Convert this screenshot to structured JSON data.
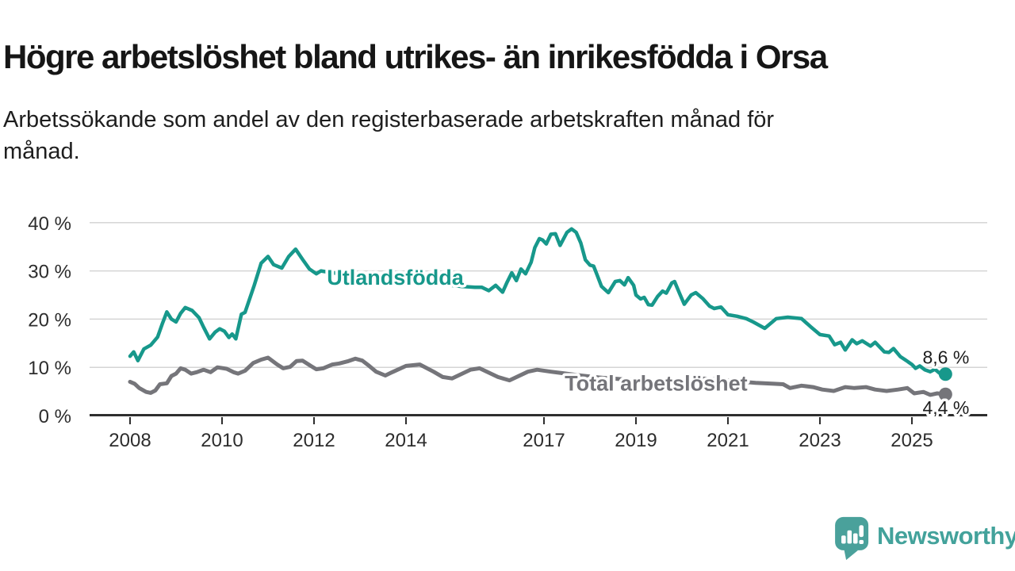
{
  "header": {
    "title": "Högre arbetslöshet bland utrikes- än inrikesfödda i Orsa",
    "subtitle_lines": [
      "Arbetssökande som andel av den registerbaserade arbetskraften månad för",
      "månad."
    ]
  },
  "chart_data": {
    "type": "line",
    "unit": "%",
    "grid": true,
    "x_axis": {
      "ticks": [
        {
          "label": "2008",
          "year": 2008
        },
        {
          "label": "2010",
          "year": 2010
        },
        {
          "label": "2012",
          "year": 2012
        },
        {
          "label": "2014",
          "year": 2014
        },
        {
          "label": "2017",
          "year": 2017
        },
        {
          "label": "2019",
          "year": 2019
        },
        {
          "label": "2021",
          "year": 2021
        },
        {
          "label": "2023",
          "year": 2023
        },
        {
          "label": "2025",
          "year": 2025
        }
      ],
      "range": [
        2007.1,
        2026.6
      ]
    },
    "y_axis": {
      "ticks": [
        {
          "label": "0 %",
          "value": 0
        },
        {
          "label": "10 %",
          "value": 10
        },
        {
          "label": "20 %",
          "value": 20
        },
        {
          "label": "30 %",
          "value": 30
        },
        {
          "label": "40 %",
          "value": 40
        }
      ],
      "range": [
        0,
        40
      ]
    },
    "series": [
      {
        "name": "Utlandsfödda",
        "color": "#17988b",
        "line_label": {
          "text": "Utlandsfödda",
          "year": 2012.28,
          "value": 28.6
        },
        "end_label": "8,6 %",
        "end_value": 8.6,
        "points": [
          [
            2008.0,
            12.3
          ],
          [
            2008.08,
            13.2
          ],
          [
            2008.17,
            11.4
          ],
          [
            2008.3,
            13.8
          ],
          [
            2008.45,
            14.6
          ],
          [
            2008.6,
            16.3
          ],
          [
            2008.7,
            19.0
          ],
          [
            2008.8,
            21.5
          ],
          [
            2008.9,
            20.0
          ],
          [
            2009.0,
            19.4
          ],
          [
            2009.1,
            21.2
          ],
          [
            2009.2,
            22.4
          ],
          [
            2009.35,
            21.8
          ],
          [
            2009.5,
            20.3
          ],
          [
            2009.6,
            18.3
          ],
          [
            2009.73,
            15.9
          ],
          [
            2009.85,
            17.3
          ],
          [
            2009.95,
            18.0
          ],
          [
            2010.05,
            17.5
          ],
          [
            2010.15,
            16.2
          ],
          [
            2010.22,
            16.9
          ],
          [
            2010.3,
            15.9
          ],
          [
            2010.42,
            21.0
          ],
          [
            2010.5,
            21.4
          ],
          [
            2010.6,
            24.2
          ],
          [
            2010.7,
            27.0
          ],
          [
            2010.85,
            31.6
          ],
          [
            2011.0,
            33.0
          ],
          [
            2011.12,
            31.3
          ],
          [
            2011.3,
            30.6
          ],
          [
            2011.45,
            33.0
          ],
          [
            2011.6,
            34.5
          ],
          [
            2011.75,
            32.4
          ],
          [
            2011.9,
            30.4
          ],
          [
            2012.05,
            29.4
          ],
          [
            2012.15,
            30.0
          ],
          [
            2012.4,
            29.6
          ],
          [
            2012.8,
            29.2
          ],
          [
            2013.2,
            28.8
          ],
          [
            2013.6,
            28.4
          ],
          [
            2014.0,
            28.0
          ],
          [
            2014.4,
            27.6
          ],
          [
            2014.8,
            27.2
          ],
          [
            2015.2,
            26.8
          ],
          [
            2015.5,
            26.6
          ],
          [
            2015.65,
            26.6
          ],
          [
            2015.8,
            25.9
          ],
          [
            2015.95,
            27.0
          ],
          [
            2016.1,
            25.6
          ],
          [
            2016.2,
            27.7
          ],
          [
            2016.3,
            29.6
          ],
          [
            2016.4,
            28.0
          ],
          [
            2016.5,
            30.4
          ],
          [
            2016.6,
            29.4
          ],
          [
            2016.72,
            31.8
          ],
          [
            2016.8,
            34.8
          ],
          [
            2016.9,
            36.7
          ],
          [
            2016.97,
            36.4
          ],
          [
            2017.05,
            35.6
          ],
          [
            2017.15,
            37.6
          ],
          [
            2017.25,
            37.7
          ],
          [
            2017.35,
            35.3
          ],
          [
            2017.5,
            38.0
          ],
          [
            2017.6,
            38.7
          ],
          [
            2017.7,
            38.0
          ],
          [
            2017.8,
            35.8
          ],
          [
            2017.9,
            32.3
          ],
          [
            2018.0,
            31.2
          ],
          [
            2018.08,
            31.0
          ],
          [
            2018.15,
            29.3
          ],
          [
            2018.25,
            26.8
          ],
          [
            2018.4,
            25.5
          ],
          [
            2018.55,
            27.8
          ],
          [
            2018.65,
            28.0
          ],
          [
            2018.75,
            27.1
          ],
          [
            2018.83,
            28.6
          ],
          [
            2018.95,
            27.0
          ],
          [
            2019.0,
            25.0
          ],
          [
            2019.1,
            24.2
          ],
          [
            2019.18,
            24.5
          ],
          [
            2019.27,
            23.0
          ],
          [
            2019.35,
            22.9
          ],
          [
            2019.47,
            24.7
          ],
          [
            2019.58,
            25.8
          ],
          [
            2019.66,
            25.4
          ],
          [
            2019.78,
            27.5
          ],
          [
            2019.84,
            27.8
          ],
          [
            2019.95,
            25.3
          ],
          [
            2020.05,
            23.1
          ],
          [
            2020.2,
            25.0
          ],
          [
            2020.3,
            25.5
          ],
          [
            2020.45,
            24.3
          ],
          [
            2020.6,
            22.7
          ],
          [
            2020.7,
            22.2
          ],
          [
            2020.85,
            22.5
          ],
          [
            2021.0,
            20.9
          ],
          [
            2021.2,
            20.6
          ],
          [
            2021.4,
            20.1
          ],
          [
            2021.55,
            19.4
          ],
          [
            2021.8,
            18.1
          ],
          [
            2022.05,
            20.1
          ],
          [
            2022.3,
            20.4
          ],
          [
            2022.6,
            20.1
          ],
          [
            2022.8,
            18.4
          ],
          [
            2023.0,
            16.8
          ],
          [
            2023.2,
            16.5
          ],
          [
            2023.32,
            14.7
          ],
          [
            2023.45,
            15.2
          ],
          [
            2023.55,
            13.6
          ],
          [
            2023.7,
            15.7
          ],
          [
            2023.8,
            14.9
          ],
          [
            2023.92,
            15.5
          ],
          [
            2024.1,
            14.4
          ],
          [
            2024.2,
            15.2
          ],
          [
            2024.4,
            13.2
          ],
          [
            2024.5,
            13.1
          ],
          [
            2024.6,
            13.9
          ],
          [
            2024.75,
            12.2
          ],
          [
            2024.88,
            11.4
          ],
          [
            2025.0,
            10.6
          ],
          [
            2025.08,
            9.8
          ],
          [
            2025.17,
            10.3
          ],
          [
            2025.28,
            9.5
          ],
          [
            2025.4,
            9.1
          ],
          [
            2025.5,
            9.6
          ],
          [
            2025.6,
            8.8
          ],
          [
            2025.73,
            8.6
          ]
        ]
      },
      {
        "name": "Total arbetslöshet",
        "color": "#75757a",
        "line_label": {
          "text": "Total arbetslöshet",
          "year": 2017.45,
          "value": 6.7
        },
        "end_label": "4,4 %",
        "end_value": 4.4,
        "points": [
          [
            2008.0,
            7.0
          ],
          [
            2008.1,
            6.6
          ],
          [
            2008.2,
            5.7
          ],
          [
            2008.35,
            4.9
          ],
          [
            2008.45,
            4.7
          ],
          [
            2008.55,
            5.2
          ],
          [
            2008.65,
            6.5
          ],
          [
            2008.8,
            6.7
          ],
          [
            2008.9,
            8.2
          ],
          [
            2009.0,
            8.7
          ],
          [
            2009.1,
            9.8
          ],
          [
            2009.2,
            9.5
          ],
          [
            2009.33,
            8.7
          ],
          [
            2009.45,
            9.0
          ],
          [
            2009.6,
            9.5
          ],
          [
            2009.75,
            9.0
          ],
          [
            2009.9,
            10.0
          ],
          [
            2010.1,
            9.7
          ],
          [
            2010.25,
            9.0
          ],
          [
            2010.35,
            8.7
          ],
          [
            2010.5,
            9.3
          ],
          [
            2010.68,
            10.9
          ],
          [
            2010.85,
            11.6
          ],
          [
            2011.0,
            12.0
          ],
          [
            2011.2,
            10.6
          ],
          [
            2011.33,
            9.8
          ],
          [
            2011.48,
            10.1
          ],
          [
            2011.62,
            11.3
          ],
          [
            2011.75,
            11.4
          ],
          [
            2011.93,
            10.3
          ],
          [
            2012.05,
            9.6
          ],
          [
            2012.2,
            9.8
          ],
          [
            2012.4,
            10.6
          ],
          [
            2012.55,
            10.8
          ],
          [
            2012.75,
            11.3
          ],
          [
            2012.9,
            11.8
          ],
          [
            2013.05,
            11.4
          ],
          [
            2013.2,
            10.3
          ],
          [
            2013.35,
            9.1
          ],
          [
            2013.55,
            8.3
          ],
          [
            2013.7,
            9.0
          ],
          [
            2014.0,
            10.3
          ],
          [
            2014.3,
            10.6
          ],
          [
            2014.6,
            9.1
          ],
          [
            2014.8,
            8.0
          ],
          [
            2015.0,
            7.7
          ],
          [
            2015.4,
            9.5
          ],
          [
            2015.6,
            9.8
          ],
          [
            2016.0,
            8.0
          ],
          [
            2016.25,
            7.3
          ],
          [
            2016.65,
            9.1
          ],
          [
            2016.85,
            9.5
          ],
          [
            2017.15,
            9.1
          ],
          [
            2017.4,
            8.8
          ],
          [
            2017.8,
            8.3
          ],
          [
            2018.2,
            7.9
          ],
          [
            2018.6,
            7.6
          ],
          [
            2019.0,
            7.3
          ],
          [
            2019.5,
            7.1
          ],
          [
            2020.0,
            7.4
          ],
          [
            2020.4,
            7.7
          ],
          [
            2020.8,
            7.5
          ],
          [
            2021.2,
            7.1
          ],
          [
            2021.6,
            6.8
          ],
          [
            2022.0,
            6.6
          ],
          [
            2022.2,
            6.5
          ],
          [
            2022.35,
            5.7
          ],
          [
            2022.6,
            6.2
          ],
          [
            2022.85,
            5.9
          ],
          [
            2023.05,
            5.4
          ],
          [
            2023.3,
            5.1
          ],
          [
            2023.55,
            5.9
          ],
          [
            2023.75,
            5.7
          ],
          [
            2024.0,
            5.9
          ],
          [
            2024.2,
            5.4
          ],
          [
            2024.45,
            5.1
          ],
          [
            2024.7,
            5.4
          ],
          [
            2024.9,
            5.7
          ],
          [
            2025.05,
            4.6
          ],
          [
            2025.25,
            4.9
          ],
          [
            2025.4,
            4.3
          ],
          [
            2025.55,
            4.6
          ],
          [
            2025.73,
            4.4
          ]
        ]
      }
    ]
  },
  "footer": {
    "brand": "Newsworthy",
    "brand_color": "#43a29b",
    "logo_color": "#4aa19b"
  }
}
